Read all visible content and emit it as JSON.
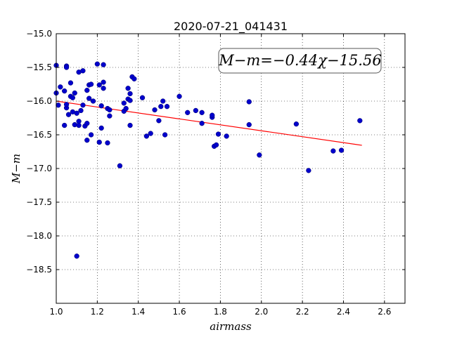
{
  "chart_data": {
    "type": "scatter",
    "title": "2020-07-21_041431",
    "xlabel": "airmass",
    "ylabel": "M−m",
    "xlim": [
      1.0,
      2.7
    ],
    "ylim": [
      -15.0,
      -19.0
    ],
    "y_inverted": true,
    "grid": true,
    "xticks": [
      1.0,
      1.2,
      1.4,
      1.6,
      1.8,
      2.0,
      2.2,
      2.4,
      2.6
    ],
    "xtick_labels": [
      "1.0",
      "1.2",
      "1.4",
      "1.6",
      "1.8",
      "2.0",
      "2.2",
      "2.4",
      "2.6"
    ],
    "yticks": [
      -15.0,
      -15.5,
      -16.0,
      -16.5,
      -17.0,
      -17.5,
      -18.0,
      -18.5
    ],
    "ytick_labels": [
      "−15.0",
      "−15.5",
      "−16.0",
      "−16.5",
      "−17.0",
      "−17.5",
      "−18.0",
      "−18.5"
    ],
    "annotation": "M−m=−0.44χ−15.56",
    "fit": {
      "slope": -0.44,
      "intercept": -15.56,
      "x_range": [
        1.0,
        2.49
      ],
      "color": "#ff0000"
    },
    "point_color": "#0000cc",
    "points": [
      [
        1.0,
        -15.47
      ],
      [
        1.0,
        -15.88
      ],
      [
        1.01,
        -16.06
      ],
      [
        1.02,
        -15.79
      ],
      [
        1.04,
        -16.36
      ],
      [
        1.04,
        -15.85
      ],
      [
        1.05,
        -15.48
      ],
      [
        1.05,
        -15.5
      ],
      [
        1.05,
        -16.1
      ],
      [
        1.05,
        -16.05
      ],
      [
        1.06,
        -16.2
      ],
      [
        1.07,
        -15.73
      ],
      [
        1.07,
        -15.93
      ],
      [
        1.08,
        -15.95
      ],
      [
        1.08,
        -16.16
      ],
      [
        1.09,
        -15.88
      ],
      [
        1.09,
        -16.35
      ],
      [
        1.1,
        -18.3
      ],
      [
        1.1,
        -16.18
      ],
      [
        1.11,
        -16.3
      ],
      [
        1.11,
        -16.36
      ],
      [
        1.11,
        -15.57
      ],
      [
        1.12,
        -16.14
      ],
      [
        1.13,
        -15.55
      ],
      [
        1.13,
        -16.06
      ],
      [
        1.14,
        -16.37
      ],
      [
        1.15,
        -16.33
      ],
      [
        1.15,
        -15.84
      ],
      [
        1.15,
        -16.58
      ],
      [
        1.16,
        -15.76
      ],
      [
        1.16,
        -15.96
      ],
      [
        1.17,
        -15.75
      ],
      [
        1.17,
        -16.5
      ],
      [
        1.18,
        -16.0
      ],
      [
        1.2,
        -15.45
      ],
      [
        1.21,
        -16.61
      ],
      [
        1.21,
        -15.76
      ],
      [
        1.22,
        -16.07
      ],
      [
        1.22,
        -16.4
      ],
      [
        1.23,
        -15.46
      ],
      [
        1.23,
        -15.72
      ],
      [
        1.23,
        -15.81
      ],
      [
        1.25,
        -16.62
      ],
      [
        1.25,
        -16.11
      ],
      [
        1.26,
        -16.22
      ],
      [
        1.26,
        -16.13
      ],
      [
        1.31,
        -16.96
      ],
      [
        1.33,
        -16.15
      ],
      [
        1.33,
        -16.03
      ],
      [
        1.34,
        -16.11
      ],
      [
        1.35,
        -15.81
      ],
      [
        1.35,
        -15.97
      ],
      [
        1.36,
        -15.89
      ],
      [
        1.36,
        -16.36
      ],
      [
        1.36,
        -15.99
      ],
      [
        1.37,
        -15.64
      ],
      [
        1.38,
        -15.67
      ],
      [
        1.42,
        -15.95
      ],
      [
        1.44,
        -16.52
      ],
      [
        1.46,
        -16.48
      ],
      [
        1.48,
        -16.13
      ],
      [
        1.5,
        -16.29
      ],
      [
        1.51,
        -16.08
      ],
      [
        1.52,
        -16.0
      ],
      [
        1.53,
        -16.5
      ],
      [
        1.54,
        -16.08
      ],
      [
        1.6,
        -15.93
      ],
      [
        1.64,
        -16.17
      ],
      [
        1.68,
        -16.14
      ],
      [
        1.71,
        -16.17
      ],
      [
        1.71,
        -16.33
      ],
      [
        1.76,
        -16.24
      ],
      [
        1.76,
        -16.21
      ],
      [
        1.77,
        -16.67
      ],
      [
        1.78,
        -16.65
      ],
      [
        1.79,
        -16.49
      ],
      [
        1.83,
        -16.52
      ],
      [
        1.94,
        -16.35
      ],
      [
        1.94,
        -16.01
      ],
      [
        1.99,
        -16.8
      ],
      [
        2.17,
        -16.34
      ],
      [
        2.23,
        -17.03
      ],
      [
        2.35,
        -16.74
      ],
      [
        2.39,
        -16.73
      ],
      [
        2.48,
        -16.29
      ]
    ]
  }
}
